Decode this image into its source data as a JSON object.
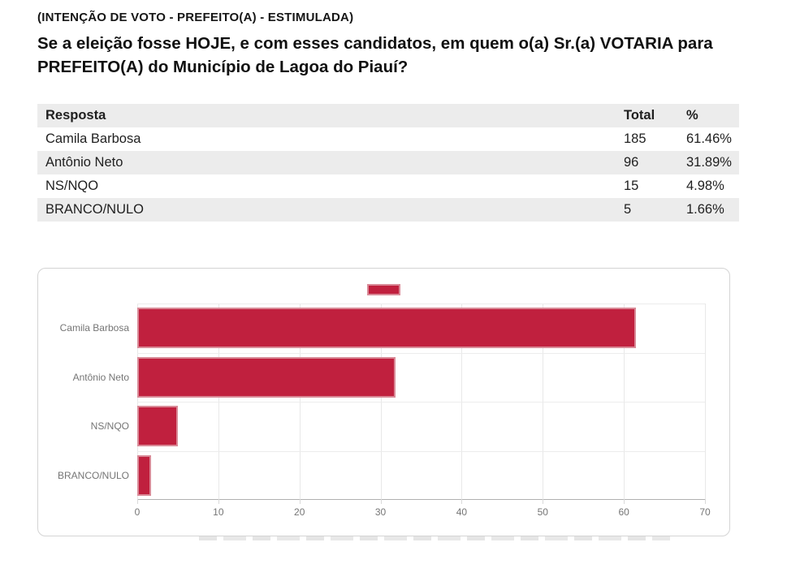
{
  "header": {
    "subtitle": "(INTENÇÃO DE VOTO - PREFEITO(A) - ESTIMULADA)",
    "question": "Se a eleição fosse HOJE, e com esses candidatos, em quem o(a) Sr.(a) VOTARIA para PREFEITO(A) do Município de Lagoa do Piauí?"
  },
  "table": {
    "columns": [
      "Resposta",
      "Total",
      "%"
    ],
    "rows": [
      {
        "resposta": "Camila Barbosa",
        "total": "185",
        "pct": "61.46%"
      },
      {
        "resposta": "Antônio Neto",
        "total": "96",
        "pct": "31.89%"
      },
      {
        "resposta": "NS/NQO",
        "total": "15",
        "pct": "4.98%"
      },
      {
        "resposta": "BRANCO/NULO",
        "total": "5",
        "pct": "1.66%"
      }
    ]
  },
  "chart_data": {
    "type": "bar",
    "orientation": "horizontal",
    "categories": [
      "Camila Barbosa",
      "Antônio Neto",
      "NS/NQO",
      "BRANCO/NULO"
    ],
    "values": [
      61.46,
      31.89,
      4.98,
      1.66
    ],
    "title": "",
    "xlabel": "",
    "ylabel": "",
    "xlim": [
      0,
      70
    ],
    "x_ticks": [
      0,
      10,
      20,
      30,
      40,
      50,
      60,
      70
    ],
    "grid": true,
    "legend_position": "top",
    "legend_label": "",
    "bar_color": "#c0203e",
    "bar_border_color": "#d98a97"
  },
  "colors": {
    "table_stripe": "#ececec",
    "card_border": "#d4d4d4",
    "axis_line": "#b0b0b0",
    "gridline": "#e8e8e8",
    "muted_text": "#757575"
  }
}
